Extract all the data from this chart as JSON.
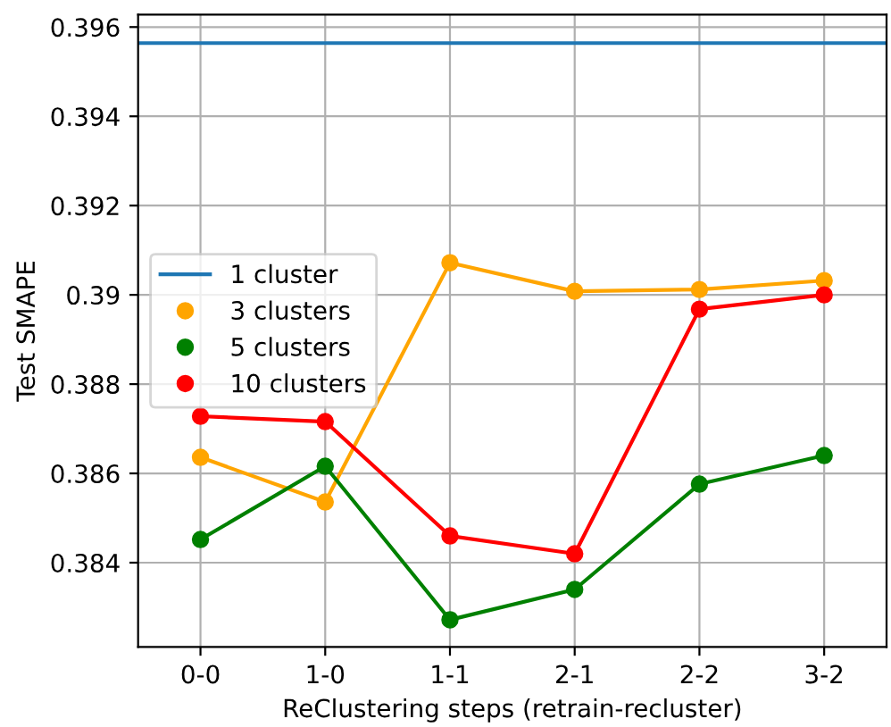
{
  "chart_data": {
    "type": "line",
    "xlabel": "ReClustering steps (retrain-recluster)",
    "ylabel": "Test SMAPE",
    "categories": [
      "0-0",
      "1-0",
      "1-1",
      "2-1",
      "2-2",
      "3-2"
    ],
    "series": [
      {
        "name": "3 clusters",
        "color": "#ffa500",
        "values": [
          0.38636,
          0.38536,
          0.39072,
          0.39008,
          0.39012,
          0.39032
        ]
      },
      {
        "name": "5 clusters",
        "color": "#008000",
        "values": [
          0.38452,
          0.38616,
          0.38272,
          0.3834,
          0.38576,
          0.3864
        ]
      },
      {
        "name": "10 clusters",
        "color": "#ff0000",
        "values": [
          0.38728,
          0.38716,
          0.3846,
          0.3842,
          0.38968,
          0.39
        ]
      }
    ],
    "ref_lines": [
      {
        "axis": "y",
        "value": 0.39564,
        "label": "1 cluster",
        "color": "#1f77b4"
      }
    ],
    "ylim": [
      0.38211,
      0.39628
    ],
    "yticks": [
      0.384,
      0.386,
      0.388,
      0.39,
      0.392,
      0.394,
      0.396
    ],
    "grid": true,
    "legend": "center left",
    "marker": "circle",
    "line_style": "solid"
  }
}
